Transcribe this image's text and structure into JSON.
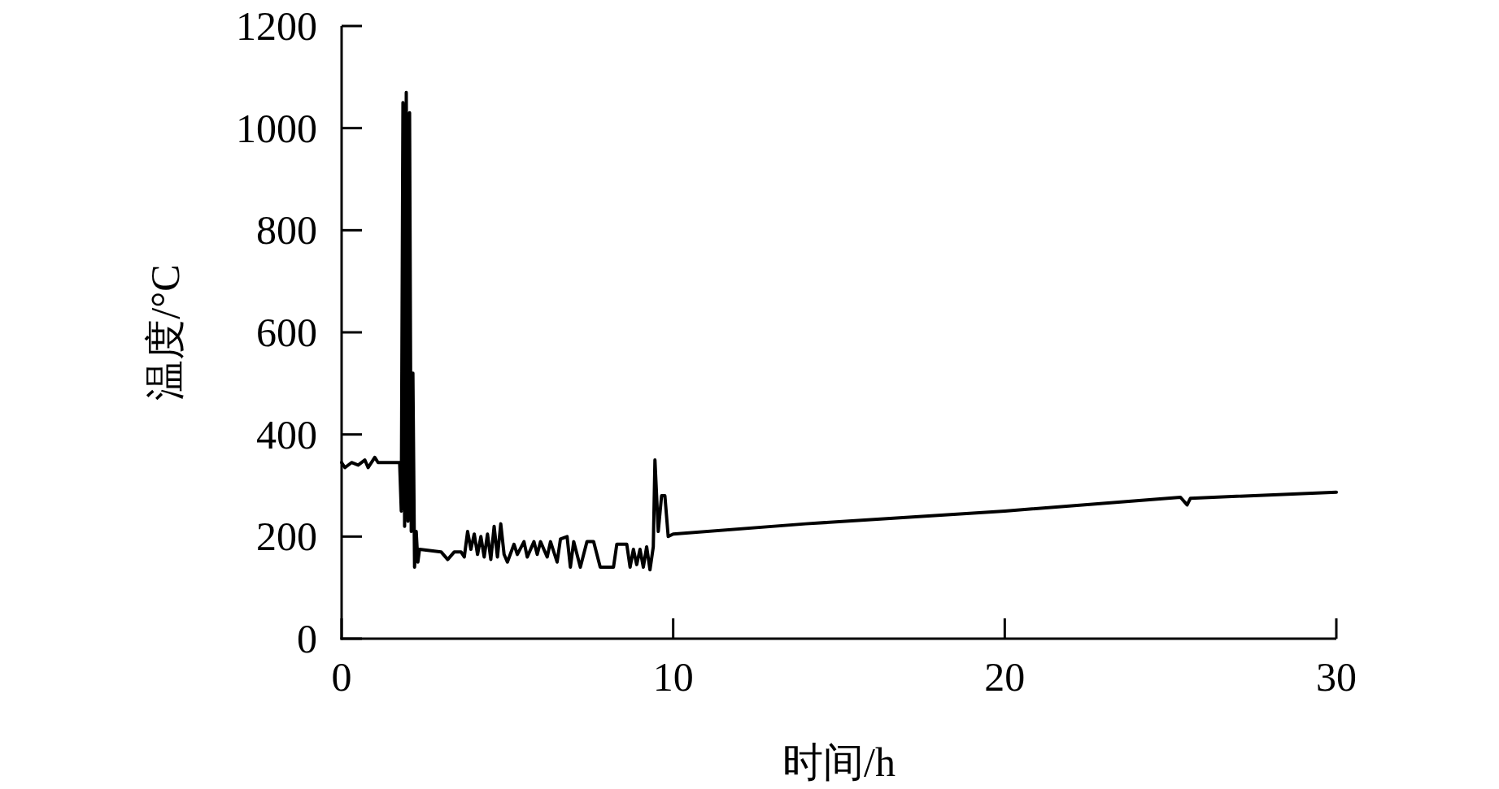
{
  "chart_data": {
    "type": "line",
    "xlabel": "时间/h",
    "ylabel": "温度/°C",
    "xlim": [
      0,
      30
    ],
    "ylim": [
      0,
      1200
    ],
    "xticks": [
      0,
      10,
      20,
      30
    ],
    "yticks": [
      0,
      200,
      400,
      600,
      800,
      1000,
      1200
    ],
    "grid": false,
    "marker": "none",
    "line_style": "solid",
    "series": [
      {
        "color": "#000000",
        "x": [
          0,
          0.1,
          0.3,
          0.5,
          0.7,
          0.8,
          1.0,
          1.1,
          1.7,
          1.75,
          1.8,
          1.85,
          1.9,
          1.95,
          2.0,
          2.05,
          2.1,
          2.15,
          2.2,
          2.25,
          2.3,
          2.35,
          3.0,
          3.2,
          3.4,
          3.6,
          3.7,
          3.8,
          3.9,
          4.0,
          4.1,
          4.2,
          4.3,
          4.4,
          4.5,
          4.6,
          4.7,
          4.8,
          4.9,
          5.0,
          5.2,
          5.3,
          5.5,
          5.6,
          5.8,
          5.9,
          6.0,
          6.2,
          6.3,
          6.5,
          6.6,
          6.8,
          6.9,
          7.0,
          7.2,
          7.4,
          7.6,
          7.8,
          8.2,
          8.3,
          8.6,
          8.7,
          8.8,
          8.9,
          9.0,
          9.1,
          9.2,
          9.3,
          9.4,
          9.45,
          9.55,
          9.65,
          9.75,
          9.85,
          10,
          14,
          20,
          25.3,
          25.5,
          25.6,
          30
        ],
        "values": [
          345,
          335,
          345,
          340,
          350,
          335,
          355,
          345,
          345,
          345,
          250,
          1050,
          220,
          1070,
          230,
          1030,
          210,
          520,
          140,
          210,
          150,
          175,
          170,
          155,
          170,
          170,
          160,
          210,
          175,
          205,
          165,
          200,
          160,
          205,
          155,
          220,
          160,
          225,
          165,
          150,
          185,
          165,
          190,
          160,
          190,
          165,
          190,
          160,
          190,
          150,
          195,
          200,
          140,
          190,
          140,
          190,
          190,
          140,
          140,
          185,
          185,
          140,
          175,
          145,
          175,
          140,
          180,
          135,
          180,
          350,
          210,
          280,
          280,
          200,
          205,
          225,
          250,
          277,
          262,
          275,
          287
        ]
      }
    ]
  }
}
